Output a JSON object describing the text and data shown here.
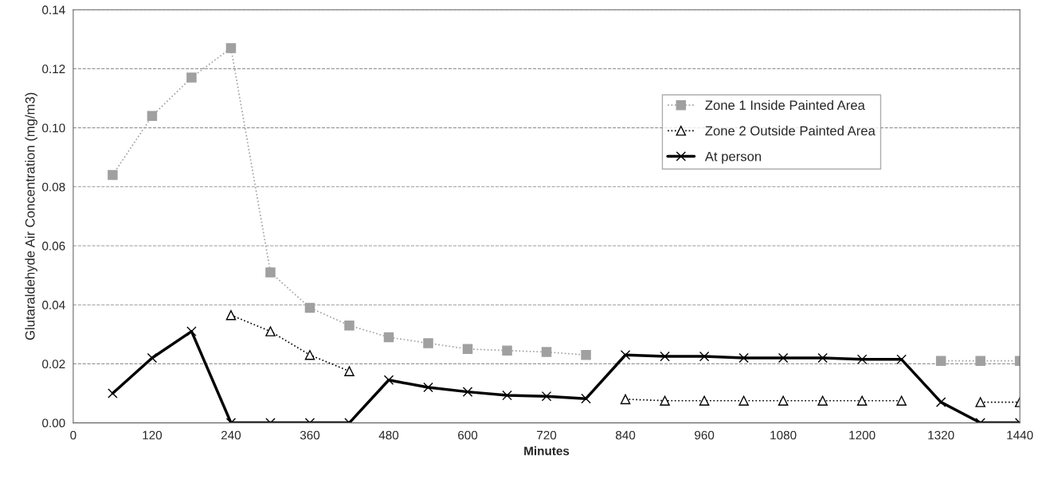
{
  "chart_data": {
    "type": "line",
    "xlabel": "Minutes",
    "ylabel": "Glutaraldehyde Air Concentration (mg/m3)",
    "x": [
      60,
      120,
      180,
      240,
      300,
      360,
      420,
      480,
      540,
      600,
      660,
      720,
      780,
      840,
      900,
      960,
      1020,
      1080,
      1140,
      1200,
      1260,
      1320,
      1380,
      1440
    ],
    "xlim": [
      0,
      1440
    ],
    "xticks": [
      0,
      120,
      240,
      360,
      480,
      600,
      720,
      840,
      960,
      1080,
      1200,
      1320,
      1440
    ],
    "ylim": [
      0,
      0.14
    ],
    "yticks": [
      {
        "value": 0,
        "label": "0.00"
      },
      {
        "value": 0.02,
        "label": "0.02"
      },
      {
        "value": 0.04,
        "label": "0.04"
      },
      {
        "value": 0.06,
        "label": "0.06"
      },
      {
        "value": 0.08,
        "label": "0.08"
      },
      {
        "value": 0.1,
        "label": "0.10"
      },
      {
        "value": 0.12,
        "label": "0.12"
      },
      {
        "value": 0.14,
        "label": "0.14"
      }
    ],
    "grid": "y",
    "legend": "top right",
    "series": [
      {
        "name": "Zone 1 Inside Painted Area",
        "color": "#a0a0a0",
        "marker": "square",
        "line_style": "dotted",
        "values": [
          0.084,
          0.104,
          0.117,
          0.127,
          0.051,
          0.039,
          0.033,
          0.029,
          0.027,
          0.025,
          0.0245,
          0.024,
          0.023,
          null,
          null,
          null,
          null,
          null,
          null,
          null,
          null,
          0.021,
          0.021,
          0.021
        ]
      },
      {
        "name": "Zone 2 Outside Painted Area",
        "color": "#000000",
        "marker": "triangle",
        "line_style": "dotted",
        "values": [
          null,
          null,
          null,
          0.0365,
          0.031,
          0.023,
          0.0175,
          null,
          null,
          null,
          null,
          null,
          null,
          0.008,
          0.0075,
          0.0075,
          0.0075,
          0.0075,
          0.0075,
          0.0075,
          0.0075,
          null,
          0.007,
          0.007
        ]
      },
      {
        "name": "At person",
        "color": "#000000",
        "marker": "cross",
        "line_style": "solid",
        "values": [
          0.01,
          0.022,
          0.031,
          0,
          0,
          0,
          0,
          0.0145,
          0.012,
          0.0105,
          0.0093,
          0.009,
          0.0082,
          0.023,
          0.0225,
          0.0225,
          0.022,
          0.022,
          0.022,
          0.0215,
          0.0215,
          0.007,
          0,
          0
        ]
      }
    ]
  }
}
